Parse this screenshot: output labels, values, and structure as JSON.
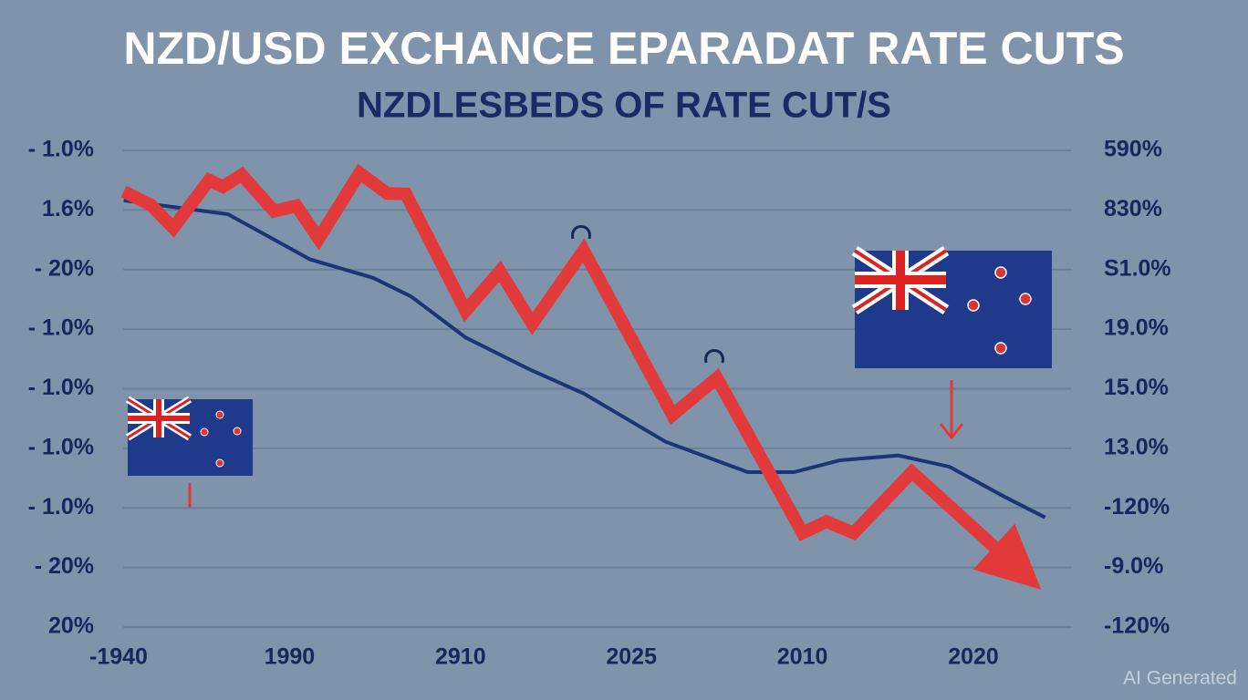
{
  "chart_data": {
    "type": "line",
    "title": "NZD/USD EXCHANCE EPARADAT RATE CUTS",
    "subtitle": "NZDLESBEDS OF RATE CUT/S",
    "categories": [
      "-1940",
      "1990",
      "2910",
      "2025",
      "2010",
      "2020"
    ],
    "y_labels": [
      "- 1.0%",
      "1.6%",
      "- 20%",
      "- 1.0%",
      "- 1.0%",
      "- 1.0%",
      "- 1.0%",
      "- 20%",
      "20%"
    ],
    "y2_labels": [
      "590%",
      "830%",
      "S1.0%",
      "19.0%",
      "15.0%",
      "13.0%",
      "-120%",
      "-9.0%",
      "-120%"
    ],
    "ylim": [
      0,
      8
    ],
    "grid": true,
    "series": [
      {
        "color": "#e23a3a",
        "x": [
          0.03,
          0.19,
          0.32,
          0.53,
          0.61,
          0.72,
          0.91,
          1.04,
          1.17,
          1.41,
          1.57,
          1.68,
          2.03,
          2.23,
          2.42,
          2.72,
          3.24,
          3.5,
          4.0,
          4.14,
          4.3,
          4.64,
          5.12
        ],
        "values": [
          7.31,
          7.08,
          6.7,
          7.5,
          7.39,
          7.59,
          6.98,
          7.07,
          6.52,
          7.62,
          7.28,
          7.27,
          5.31,
          5.97,
          5.09,
          6.32,
          3.56,
          4.18,
          1.58,
          1.77,
          1.58,
          2.6,
          1.35
        ]
      },
      {
        "color": "#1e3478",
        "x": [
          0.03,
          0.64,
          1.12,
          1.49,
          1.71,
          2.03,
          2.4,
          2.72,
          3.2,
          3.68,
          3.95,
          4.22,
          4.56,
          4.86,
          5.18,
          5.42
        ],
        "values": [
          7.16,
          6.93,
          6.17,
          5.86,
          5.55,
          4.86,
          4.33,
          3.92,
          3.11,
          2.6,
          2.6,
          2.8,
          2.88,
          2.69,
          2.19,
          1.84
        ]
      }
    ],
    "watermark": "AI Generated"
  }
}
